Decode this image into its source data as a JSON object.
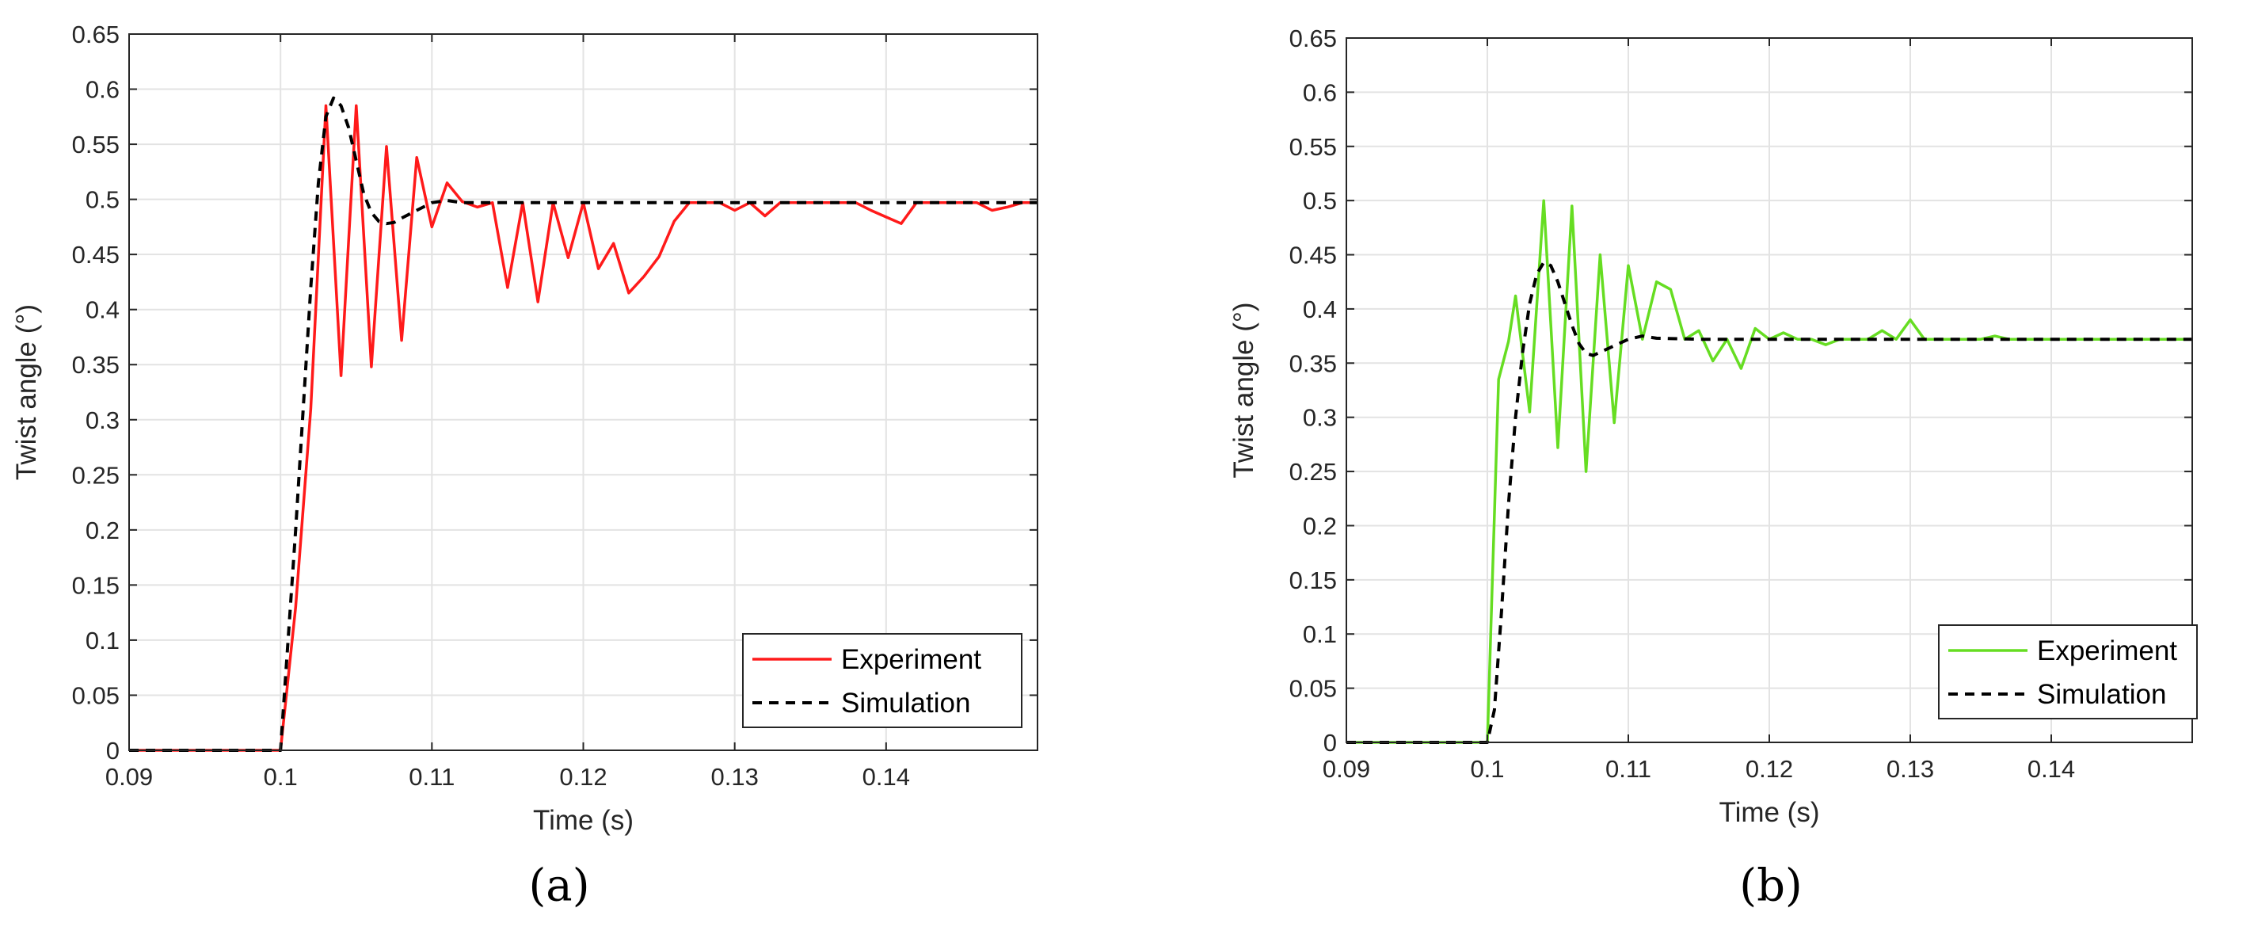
{
  "chart_data": [
    {
      "type": "line",
      "panel_label": "(a)",
      "xlabel": "Time (s)",
      "ylabel": "Twist angle (°)",
      "xlim": [
        0.09,
        0.15
      ],
      "ylim": [
        0,
        0.65
      ],
      "xticks": [
        0.09,
        0.1,
        0.11,
        0.12,
        0.13,
        0.14
      ],
      "xtick_labels": [
        "0.09",
        "0.1",
        "0.11",
        "0.12",
        "0.13",
        "0.14"
      ],
      "yticks": [
        0,
        0.05,
        0.1,
        0.15,
        0.2,
        0.25,
        0.3,
        0.35,
        0.4,
        0.45,
        0.5,
        0.55,
        0.6,
        0.65
      ],
      "ytick_labels": [
        "0",
        "0.05",
        "0.1",
        "0.15",
        "0.2",
        "0.25",
        "0.3",
        "0.35",
        "0.4",
        "0.45",
        "0.5",
        "0.55",
        "0.6",
        "0.65"
      ],
      "grid": true,
      "legend_position": "bottom-right",
      "series": [
        {
          "name": "Experiment",
          "color": "#ff1a1a",
          "dash": "solid",
          "x": [
            0.09,
            0.1,
            0.101,
            0.102,
            0.103,
            0.104,
            0.105,
            0.106,
            0.107,
            0.108,
            0.109,
            0.11,
            0.111,
            0.112,
            0.113,
            0.114,
            0.115,
            0.116,
            0.117,
            0.118,
            0.119,
            0.12,
            0.121,
            0.122,
            0.123,
            0.124,
            0.125,
            0.126,
            0.127,
            0.128,
            0.129,
            0.13,
            0.131,
            0.132,
            0.133,
            0.134,
            0.135,
            0.136,
            0.137,
            0.138,
            0.139,
            0.14,
            0.141,
            0.142,
            0.143,
            0.144,
            0.145,
            0.146,
            0.147,
            0.148,
            0.149,
            0.15
          ],
          "y": [
            0,
            0,
            0.13,
            0.31,
            0.585,
            0.34,
            0.585,
            0.348,
            0.548,
            0.372,
            0.538,
            0.475,
            0.515,
            0.498,
            0.493,
            0.497,
            0.42,
            0.497,
            0.407,
            0.497,
            0.447,
            0.497,
            0.437,
            0.46,
            0.415,
            0.43,
            0.448,
            0.48,
            0.497,
            0.497,
            0.497,
            0.49,
            0.497,
            0.485,
            0.497,
            0.497,
            0.497,
            0.497,
            0.497,
            0.497,
            0.49,
            0.484,
            0.478,
            0.497,
            0.497,
            0.497,
            0.497,
            0.497,
            0.49,
            0.493,
            0.497,
            0.497
          ]
        },
        {
          "name": "Simulation",
          "color": "#000000",
          "dash": "dashed",
          "x": [
            0.09,
            0.1,
            0.101,
            0.102,
            0.1025,
            0.103,
            0.1035,
            0.104,
            0.1045,
            0.105,
            0.1055,
            0.106,
            0.1065,
            0.107,
            0.1075,
            0.108,
            0.109,
            0.11,
            0.111,
            0.112,
            0.115,
            0.12,
            0.13,
            0.14,
            0.15
          ],
          "y": [
            0,
            0,
            0.2,
            0.42,
            0.515,
            0.575,
            0.592,
            0.585,
            0.565,
            0.535,
            0.505,
            0.488,
            0.48,
            0.478,
            0.479,
            0.483,
            0.49,
            0.497,
            0.499,
            0.497,
            0.497,
            0.497,
            0.497,
            0.497,
            0.497
          ]
        }
      ]
    },
    {
      "type": "line",
      "panel_label": "(b)",
      "xlabel": "Time (s)",
      "ylabel": "Twist angle (°)",
      "xlim": [
        0.09,
        0.15
      ],
      "ylim": [
        0,
        0.65
      ],
      "xticks": [
        0.09,
        0.1,
        0.11,
        0.12,
        0.13,
        0.14
      ],
      "xtick_labels": [
        "0.09",
        "0.1",
        "0.11",
        "0.12",
        "0.13",
        "0.14"
      ],
      "yticks": [
        0,
        0.05,
        0.1,
        0.15,
        0.2,
        0.25,
        0.3,
        0.35,
        0.4,
        0.45,
        0.5,
        0.55,
        0.6,
        0.65
      ],
      "ytick_labels": [
        "0",
        "0.05",
        "0.1",
        "0.15",
        "0.2",
        "0.25",
        "0.3",
        "0.35",
        "0.4",
        "0.45",
        "0.5",
        "0.55",
        "0.6",
        "0.65"
      ],
      "grid": true,
      "legend_position": "bottom-right",
      "series": [
        {
          "name": "Experiment",
          "color": "#66dd22",
          "dash": "solid",
          "x": [
            0.09,
            0.1,
            0.1008,
            0.1015,
            0.102,
            0.103,
            0.104,
            0.105,
            0.106,
            0.107,
            0.108,
            0.109,
            0.11,
            0.111,
            0.112,
            0.113,
            0.114,
            0.115,
            0.116,
            0.117,
            0.118,
            0.119,
            0.12,
            0.121,
            0.122,
            0.123,
            0.124,
            0.125,
            0.126,
            0.127,
            0.128,
            0.129,
            0.13,
            0.131,
            0.132,
            0.133,
            0.134,
            0.135,
            0.136,
            0.137,
            0.138,
            0.14,
            0.15
          ],
          "y": [
            0,
            0,
            0.335,
            0.37,
            0.412,
            0.305,
            0.5,
            0.272,
            0.495,
            0.25,
            0.45,
            0.295,
            0.44,
            0.372,
            0.425,
            0.418,
            0.372,
            0.38,
            0.352,
            0.372,
            0.345,
            0.382,
            0.372,
            0.378,
            0.372,
            0.372,
            0.367,
            0.372,
            0.372,
            0.372,
            0.38,
            0.372,
            0.39,
            0.372,
            0.372,
            0.372,
            0.372,
            0.372,
            0.375,
            0.372,
            0.372,
            0.372,
            0.372
          ]
        },
        {
          "name": "Simulation",
          "color": "#000000",
          "dash": "dashed",
          "x": [
            0.09,
            0.1,
            0.1005,
            0.101,
            0.1015,
            0.102,
            0.1025,
            0.103,
            0.1035,
            0.104,
            0.1045,
            0.105,
            0.1055,
            0.106,
            0.1065,
            0.107,
            0.1075,
            0.108,
            0.109,
            0.11,
            0.111,
            0.112,
            0.115,
            0.12,
            0.13,
            0.14,
            0.15
          ],
          "y": [
            0,
            0,
            0.03,
            0.12,
            0.22,
            0.3,
            0.36,
            0.405,
            0.432,
            0.443,
            0.44,
            0.425,
            0.405,
            0.385,
            0.368,
            0.359,
            0.357,
            0.36,
            0.366,
            0.372,
            0.375,
            0.373,
            0.372,
            0.372,
            0.372,
            0.372,
            0.372
          ]
        }
      ]
    }
  ]
}
